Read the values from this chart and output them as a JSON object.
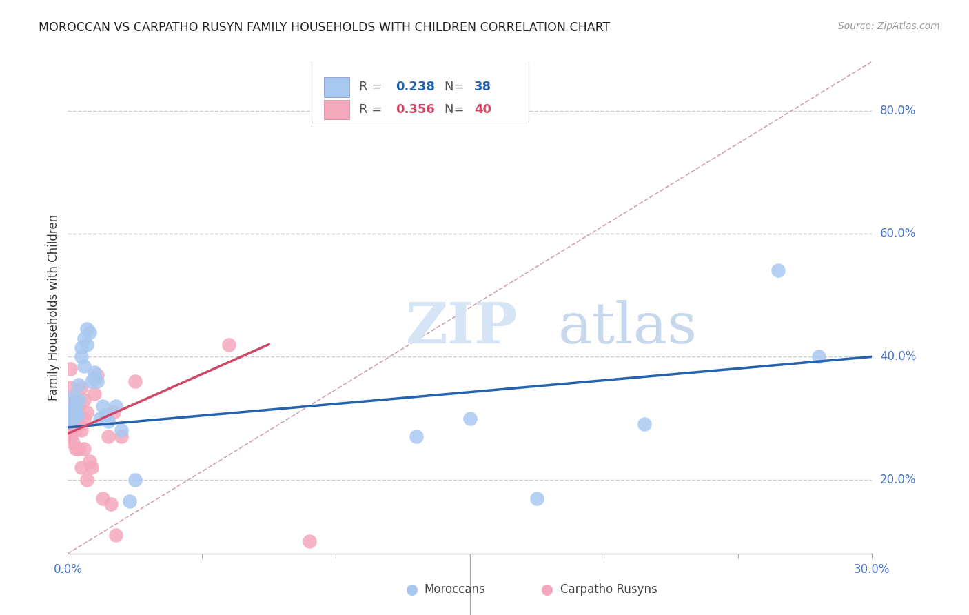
{
  "title": "MOROCCAN VS CARPATHO RUSYN FAMILY HOUSEHOLDS WITH CHILDREN CORRELATION CHART",
  "source": "Source: ZipAtlas.com",
  "ylabel": "Family Households with Children",
  "watermark_zip": "ZIP",
  "watermark_atlas": "atlas",
  "legend_blue_R": "0.238",
  "legend_blue_N": "38",
  "legend_pink_R": "0.356",
  "legend_pink_N": "40",
  "blue_scatter_color": "#A8C8F0",
  "pink_scatter_color": "#F4A8BC",
  "blue_line_color": "#2563AE",
  "pink_line_color": "#D04868",
  "diag_color": "#D0A0B0",
  "axis_label_color": "#4472C4",
  "grid_color": "#CCCCCC",
  "xlim": [
    0.0,
    0.3
  ],
  "ylim": [
    0.08,
    0.88
  ],
  "yticks": [
    0.2,
    0.4,
    0.6,
    0.8
  ],
  "ytick_labels": [
    "20.0%",
    "40.0%",
    "60.0%",
    "80.0%"
  ],
  "blue_x": [
    0.001,
    0.001,
    0.001,
    0.001,
    0.0015,
    0.002,
    0.002,
    0.002,
    0.003,
    0.003,
    0.0035,
    0.004,
    0.004,
    0.005,
    0.005,
    0.006,
    0.006,
    0.007,
    0.007,
    0.008,
    0.009,
    0.01,
    0.01,
    0.011,
    0.012,
    0.013,
    0.014,
    0.015,
    0.018,
    0.02,
    0.023,
    0.025,
    0.13,
    0.15,
    0.175,
    0.215,
    0.265,
    0.28
  ],
  "blue_y": [
    0.3,
    0.31,
    0.295,
    0.315,
    0.305,
    0.335,
    0.31,
    0.3,
    0.32,
    0.31,
    0.305,
    0.355,
    0.33,
    0.4,
    0.415,
    0.385,
    0.43,
    0.445,
    0.42,
    0.44,
    0.36,
    0.375,
    0.365,
    0.36,
    0.3,
    0.32,
    0.305,
    0.295,
    0.32,
    0.28,
    0.165,
    0.2,
    0.27,
    0.3,
    0.17,
    0.29,
    0.54,
    0.4
  ],
  "pink_x": [
    0.001,
    0.001,
    0.001,
    0.001,
    0.001,
    0.001,
    0.002,
    0.002,
    0.002,
    0.002,
    0.002,
    0.002,
    0.003,
    0.003,
    0.003,
    0.003,
    0.004,
    0.004,
    0.004,
    0.005,
    0.005,
    0.005,
    0.006,
    0.006,
    0.006,
    0.007,
    0.007,
    0.008,
    0.009,
    0.01,
    0.011,
    0.013,
    0.015,
    0.016,
    0.017,
    0.018,
    0.02,
    0.025,
    0.06,
    0.09
  ],
  "pink_y": [
    0.3,
    0.29,
    0.28,
    0.27,
    0.35,
    0.38,
    0.31,
    0.3,
    0.29,
    0.32,
    0.26,
    0.33,
    0.31,
    0.28,
    0.25,
    0.3,
    0.32,
    0.25,
    0.29,
    0.35,
    0.28,
    0.22,
    0.3,
    0.33,
    0.25,
    0.2,
    0.31,
    0.23,
    0.22,
    0.34,
    0.37,
    0.17,
    0.27,
    0.16,
    0.31,
    0.11,
    0.27,
    0.36,
    0.42,
    0.1
  ],
  "blue_line_x0": 0.0,
  "blue_line_x1": 0.3,
  "blue_line_y0": 0.285,
  "blue_line_y1": 0.4,
  "pink_line_x0": 0.0,
  "pink_line_x1": 0.075,
  "pink_line_y0": 0.275,
  "pink_line_y1": 0.42
}
